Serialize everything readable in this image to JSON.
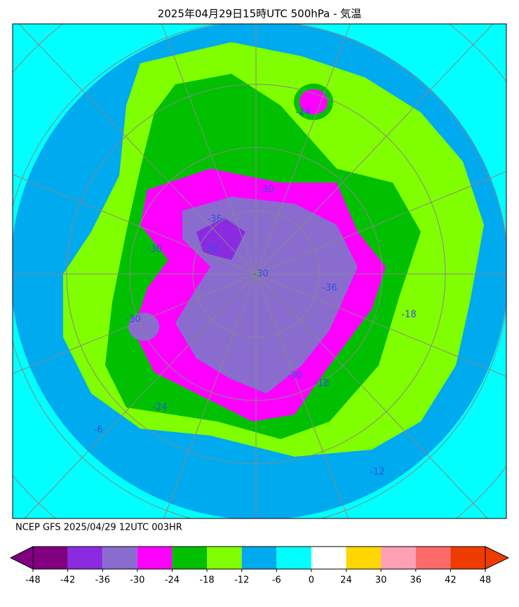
{
  "title": "2025年04月29日15時UTC 500hPa - 気温",
  "source": "NCEP GFS 2025/04/29 12UTC 003HR",
  "contour_labels": [
    -30,
    -36,
    -30,
    -30,
    -30,
    -36,
    -18,
    -18,
    -24,
    -30,
    -24,
    -6,
    -12,
    -30
  ],
  "colorbar": {
    "ticks": [
      -48,
      -42,
      -36,
      -30,
      -24,
      -18,
      -12,
      -6,
      0,
      24,
      30,
      36,
      42,
      48
    ],
    "colors": [
      "#800080",
      "#8a2be2",
      "#8a6ccf",
      "#ff00ff",
      "#00c000",
      "#80ff00",
      "#00aaee",
      "#00ffff",
      "#ffffff",
      "#ffd700",
      "#ffa0b4",
      "#ff6a6a",
      "#ee3c00"
    ],
    "under_color": "#800080",
    "over_color": "#ee3c00"
  }
}
